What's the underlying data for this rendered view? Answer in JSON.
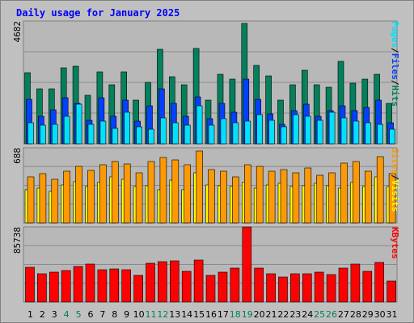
{
  "title": "Daily usage for January 2025",
  "colors": {
    "background": "#c0c0c0",
    "plot_bg": "#b8b8b8",
    "grid": "#8c8c8c",
    "title": "#0000ff",
    "hits": "#00805c",
    "files": "#0040ff",
    "pages": "#00e0ff",
    "visits": "#ffff00",
    "sites": "#ff9900",
    "kbytes": "#ff0000",
    "weekend_label": "#00805c"
  },
  "legend": {
    "top": [
      "Pages",
      "/",
      "Files",
      "/",
      "Hits"
    ],
    "middle": [
      "Sites",
      "/",
      "Visits"
    ],
    "bottom": [
      "KBytes"
    ]
  },
  "chart_data": [
    {
      "type": "bar",
      "title": "Daily usage for January 2025",
      "panel": "hits-files-pages",
      "max_label": "4682",
      "ylim": [
        0,
        4682
      ],
      "grid": true,
      "categories": [
        "1",
        "2",
        "3",
        "4",
        "5",
        "6",
        "7",
        "8",
        "9",
        "10",
        "11",
        "12",
        "13",
        "14",
        "15",
        "16",
        "17",
        "18",
        "19",
        "20",
        "21",
        "22",
        "23",
        "24",
        "25",
        "26",
        "27",
        "28",
        "29",
        "30",
        "31"
      ],
      "series": [
        {
          "name": "Hits",
          "values": [
            2700,
            2100,
            2100,
            2900,
            2950,
            1850,
            2750,
            2250,
            2750,
            1650,
            2350,
            3600,
            2550,
            2250,
            3650,
            1650,
            2650,
            2450,
            4600,
            3000,
            2600,
            1650,
            2250,
            2800,
            2250,
            2150,
            3150,
            2300,
            2450,
            2650,
            1550
          ]
        },
        {
          "name": "Files",
          "values": [
            1700,
            1050,
            1300,
            1750,
            1550,
            900,
            1750,
            1050,
            1650,
            850,
            1450,
            2100,
            1550,
            1050,
            1800,
            950,
            1550,
            1200,
            2450,
            1700,
            1150,
            750,
            1250,
            1500,
            1050,
            1250,
            1450,
            1250,
            1400,
            1650,
            800
          ]
        },
        {
          "name": "Pages",
          "values": [
            800,
            700,
            750,
            1050,
            1500,
            750,
            850,
            600,
            1200,
            650,
            550,
            1000,
            800,
            700,
            1450,
            700,
            950,
            800,
            850,
            1100,
            900,
            650,
            1100,
            1050,
            900,
            1200,
            1000,
            850,
            800,
            750,
            550
          ]
        }
      ]
    },
    {
      "type": "bar",
      "panel": "sites-visits",
      "max_label": "688",
      "ylim": [
        0,
        688
      ],
      "grid": true,
      "categories": [
        "1",
        "2",
        "3",
        "4",
        "5",
        "6",
        "7",
        "8",
        "9",
        "10",
        "11",
        "12",
        "13",
        "14",
        "15",
        "16",
        "17",
        "18",
        "19",
        "20",
        "21",
        "22",
        "23",
        "24",
        "25",
        "26",
        "27",
        "28",
        "29",
        "30",
        "31"
      ],
      "series": [
        {
          "name": "Sites",
          "values": [
            420,
            450,
            400,
            470,
            520,
            480,
            530,
            560,
            540,
            460,
            560,
            600,
            580,
            530,
            660,
            490,
            470,
            420,
            530,
            520,
            470,
            490,
            460,
            500,
            440,
            460,
            550,
            560,
            470,
            610,
            450
          ]
        },
        {
          "name": "Visits",
          "values": [
            300,
            320,
            290,
            350,
            380,
            330,
            370,
            420,
            400,
            330,
            340,
            300,
            390,
            300,
            460,
            350,
            340,
            330,
            370,
            320,
            350,
            360,
            330,
            340,
            360,
            340,
            320,
            370,
            330,
            420,
            330
          ]
        }
      ]
    },
    {
      "type": "bar",
      "panel": "kbytes",
      "max_label": "85738",
      "ylim": [
        0,
        85738
      ],
      "grid": true,
      "categories": [
        "1",
        "2",
        "3",
        "4",
        "5",
        "6",
        "7",
        "8",
        "9",
        "10",
        "11",
        "12",
        "13",
        "14",
        "15",
        "16",
        "17",
        "18",
        "19",
        "20",
        "21",
        "22",
        "23",
        "24",
        "25",
        "26",
        "27",
        "28",
        "29",
        "30",
        "31"
      ],
      "series": [
        {
          "name": "KBytes",
          "values": [
            40000,
            32000,
            34000,
            36000,
            41000,
            43000,
            37000,
            38000,
            36500,
            30500,
            44000,
            46000,
            47000,
            35000,
            48000,
            30000,
            34000,
            39000,
            85738,
            39000,
            32000,
            28500,
            32500,
            32500,
            34000,
            31500,
            39000,
            43500,
            35000,
            45000,
            24000
          ]
        }
      ]
    }
  ],
  "weekend_days": [
    4,
    5,
    11,
    12,
    18,
    19,
    25,
    26
  ]
}
